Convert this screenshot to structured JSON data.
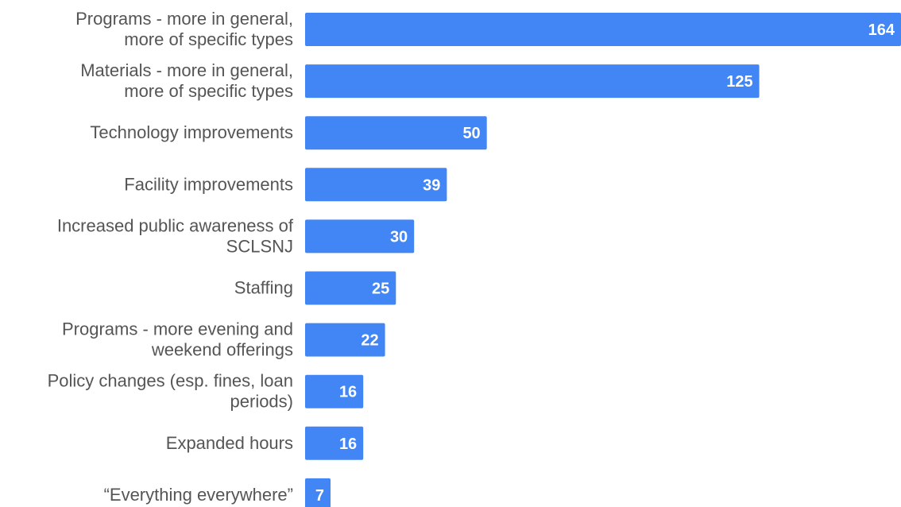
{
  "chart_data": {
    "type": "bar",
    "orientation": "horizontal",
    "categories": [
      [
        "Programs - more in general,",
        "more of specific types"
      ],
      [
        "Materials - more in general,",
        "more of specific types"
      ],
      [
        "Technology improvements"
      ],
      [
        "Facility improvements"
      ],
      [
        "Increased public awareness of",
        "SCLSNJ"
      ],
      [
        "Staffing"
      ],
      [
        "Programs - more evening and",
        "weekend offerings"
      ],
      [
        "Policy changes (esp. fines, loan",
        "periods)"
      ],
      [
        "Expanded hours"
      ],
      [
        "“Everything everywhere”"
      ]
    ],
    "values": [
      164,
      125,
      50,
      39,
      30,
      25,
      22,
      16,
      16,
      7
    ],
    "data_labels": [
      "164",
      "125",
      "50",
      "39",
      "30",
      "25",
      "22",
      "16",
      "16",
      "7"
    ],
    "bar_color": "#4285f4",
    "label_color": "#555555",
    "value_label_color": "#ffffff",
    "xlim": [
      0,
      164
    ],
    "grid": false,
    "legend": "none"
  }
}
